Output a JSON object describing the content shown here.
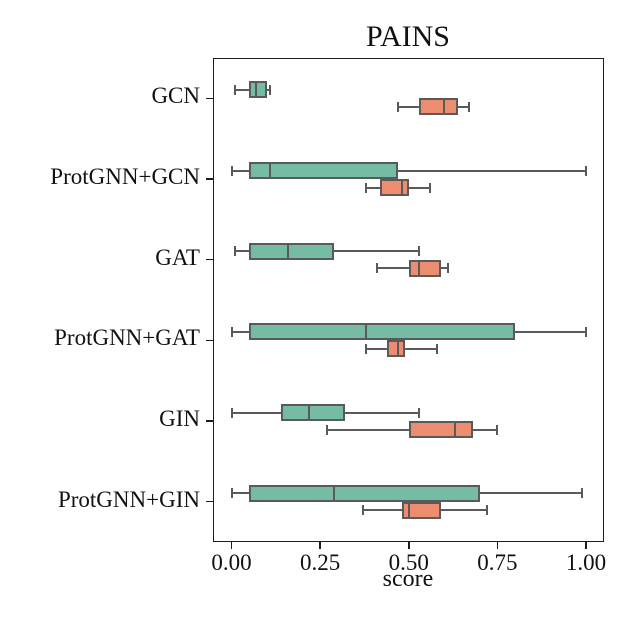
{
  "chart_data": {
    "type": "boxplot",
    "orientation": "horizontal",
    "title": "PAINS",
    "xlabel": "score",
    "ylabel": "",
    "grid": false,
    "legend": null,
    "xlim": [
      -0.05,
      1.05
    ],
    "x_tick_values": [
      0.0,
      0.25,
      0.5,
      0.75,
      1.0
    ],
    "x_tick_labels": [
      "0.00",
      "0.25",
      "0.50",
      "0.75",
      "1.00"
    ],
    "categories": [
      "GCN",
      "ProtGNN+GCN",
      "GAT",
      "ProtGNN+GAT",
      "GIN",
      "ProtGNN+GIN"
    ],
    "colors": {
      "spine": "#1c1c1c",
      "box_edge": "#5a5a5a",
      "text": "#111111"
    },
    "series": [
      {
        "name": "teal-series",
        "color": "#74bda4",
        "edge_color": "#5a5a5a",
        "boxes": [
          {
            "category": "GCN",
            "whislo": 0.01,
            "q1": 0.05,
            "med": 0.07,
            "q3": 0.1,
            "whishi": 0.11
          },
          {
            "category": "ProtGNN+GCN",
            "whislo": 0.0,
            "q1": 0.05,
            "med": 0.11,
            "q3": 0.47,
            "whishi": 1.0
          },
          {
            "category": "GAT",
            "whislo": 0.01,
            "q1": 0.05,
            "med": 0.16,
            "q3": 0.29,
            "whishi": 0.53
          },
          {
            "category": "ProtGNN+GAT",
            "whislo": 0.0,
            "q1": 0.05,
            "med": 0.38,
            "q3": 0.8,
            "whishi": 1.0
          },
          {
            "category": "GIN",
            "whislo": 0.0,
            "q1": 0.14,
            "med": 0.22,
            "q3": 0.32,
            "whishi": 0.53
          },
          {
            "category": "ProtGNN+GIN",
            "whislo": 0.0,
            "q1": 0.05,
            "med": 0.29,
            "q3": 0.7,
            "whishi": 0.99
          }
        ]
      },
      {
        "name": "orange-series",
        "color": "#ec8d70",
        "edge_color": "#5a5a5a",
        "boxes": [
          {
            "category": "GCN",
            "whislo": 0.47,
            "q1": 0.53,
            "med": 0.6,
            "q3": 0.64,
            "whishi": 0.67
          },
          {
            "category": "ProtGNN+GCN",
            "whislo": 0.38,
            "q1": 0.42,
            "med": 0.48,
            "q3": 0.5,
            "whishi": 0.56
          },
          {
            "category": "GAT",
            "whislo": 0.41,
            "q1": 0.5,
            "med": 0.53,
            "q3": 0.59,
            "whishi": 0.61
          },
          {
            "category": "ProtGNN+GAT",
            "whislo": 0.38,
            "q1": 0.44,
            "med": 0.47,
            "q3": 0.49,
            "whishi": 0.58
          },
          {
            "category": "GIN",
            "whislo": 0.27,
            "q1": 0.5,
            "med": 0.63,
            "q3": 0.68,
            "whishi": 0.75
          },
          {
            "category": "ProtGNN+GIN",
            "whislo": 0.37,
            "q1": 0.48,
            "med": 0.5,
            "q3": 0.59,
            "whishi": 0.72
          }
        ]
      }
    ]
  }
}
